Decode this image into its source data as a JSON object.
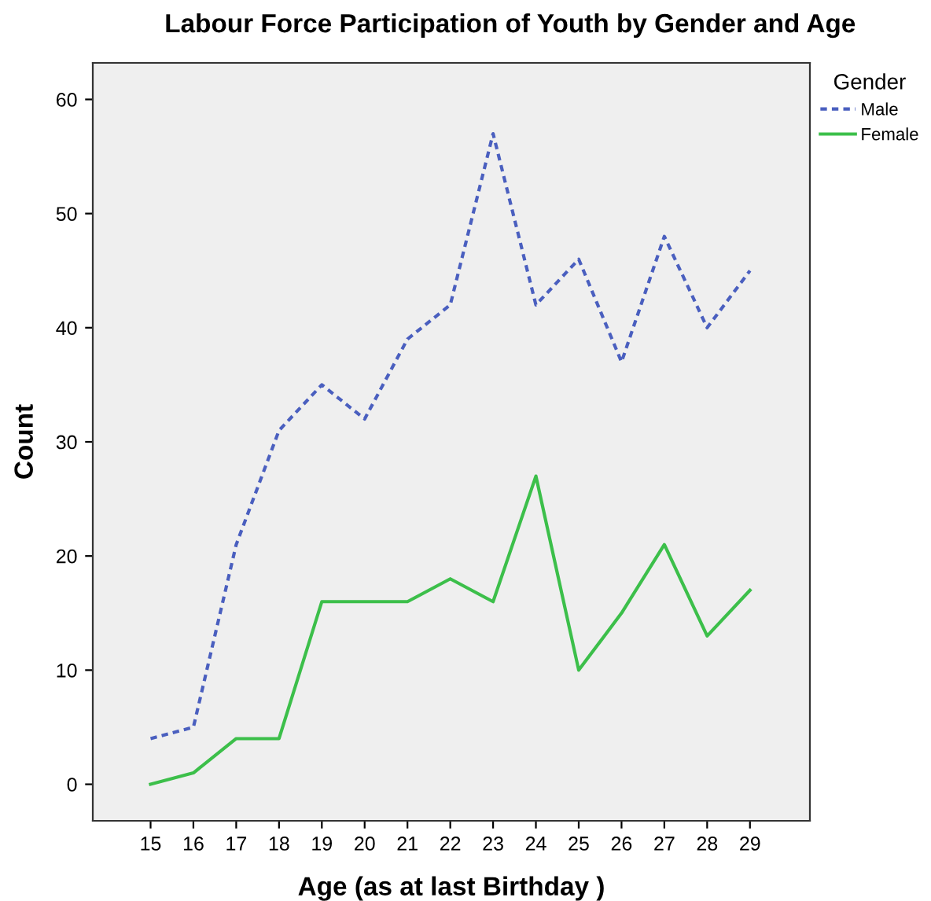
{
  "chart_data": {
    "type": "line",
    "title": "Labour Force Participation of Youth by Gender and Age",
    "xlabel": "Age (as at last Birthday )",
    "ylabel": "Count",
    "legend_title": "Gender",
    "categories": [
      "15",
      "16",
      "17",
      "18",
      "19",
      "20",
      "21",
      "22",
      "23",
      "24",
      "25",
      "26",
      "27",
      "28",
      "29"
    ],
    "series": [
      {
        "name": "Male",
        "color": "#4a5fbf",
        "line_style": "dotted",
        "values": [
          4,
          5,
          21,
          31,
          35,
          32,
          39,
          42,
          57,
          42,
          46,
          37,
          48,
          40,
          45
        ]
      },
      {
        "name": "Female",
        "color": "#3cbf4a",
        "line_style": "solid",
        "values": [
          0,
          1,
          4,
          4,
          16,
          16,
          16,
          18,
          16,
          27,
          10,
          15,
          21,
          13,
          17
        ]
      }
    ],
    "ylim": [
      -3.2,
      63.2
    ],
    "yticks": [
      0,
      10,
      20,
      30,
      40,
      50,
      60
    ],
    "grid": false,
    "legend": "top right",
    "marker": "none"
  }
}
